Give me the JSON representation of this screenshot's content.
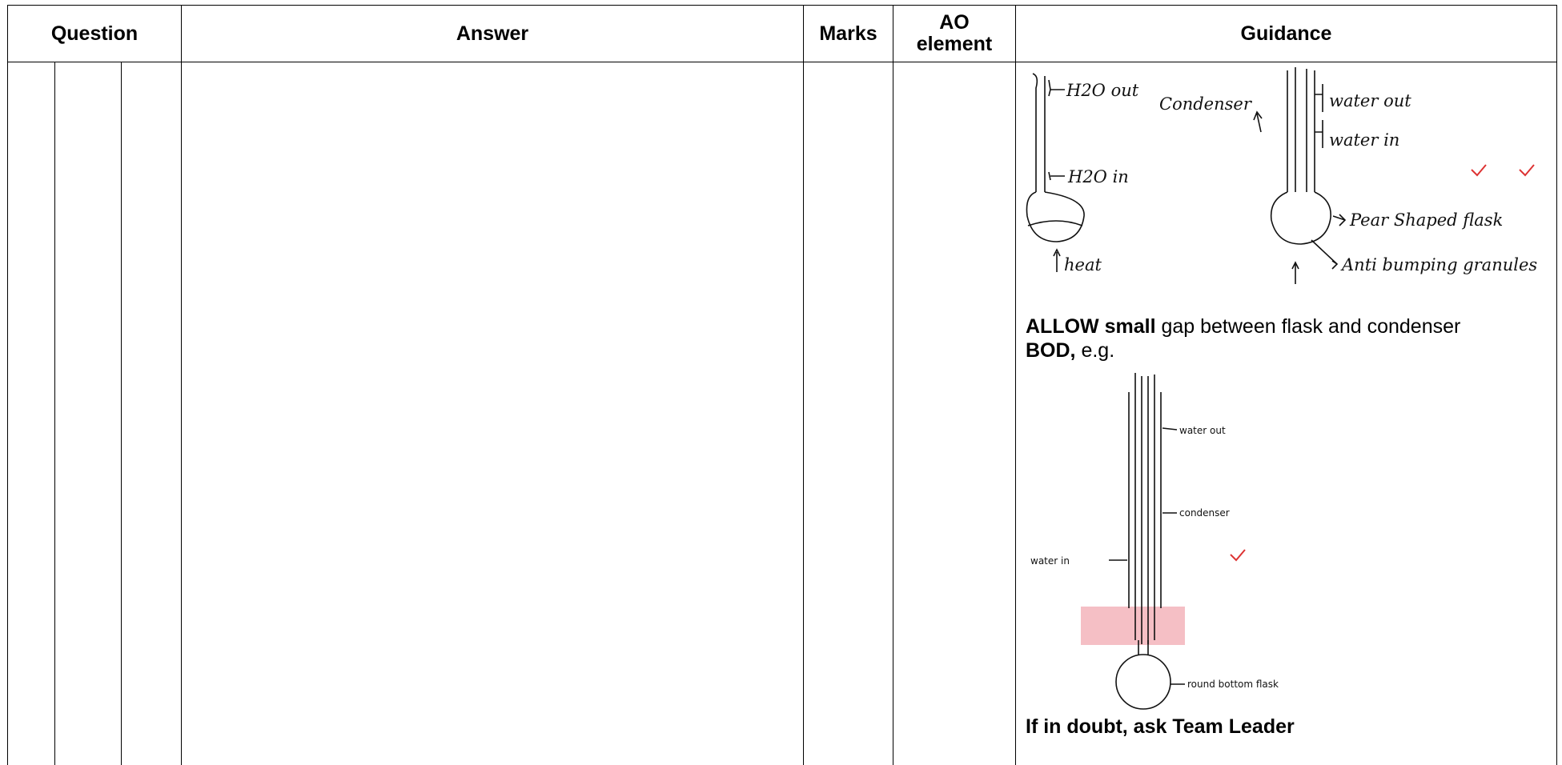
{
  "table": {
    "headers": [
      "Question",
      "Answer",
      "Marks",
      "AO element",
      "Guidance"
    ],
    "guidance": {
      "figure_1": {
        "labels": [
          "H2O out",
          "H2O in",
          "heat",
          "Condenser",
          "water out",
          "water in",
          "Pear Shaped flask",
          "Anti bumping granules"
        ]
      },
      "allow": {
        "bold": "ALLOW small",
        "text": "gap between flask and condenser"
      },
      "bod": {
        "bold": "BOD,",
        "text": "e.g."
      },
      "figure_2": {
        "labels": [
          "water out",
          "condenser",
          "water in",
          "round bottom flask"
        ]
      },
      "note": "If in doubt, ask Team Leader"
    }
  }
}
